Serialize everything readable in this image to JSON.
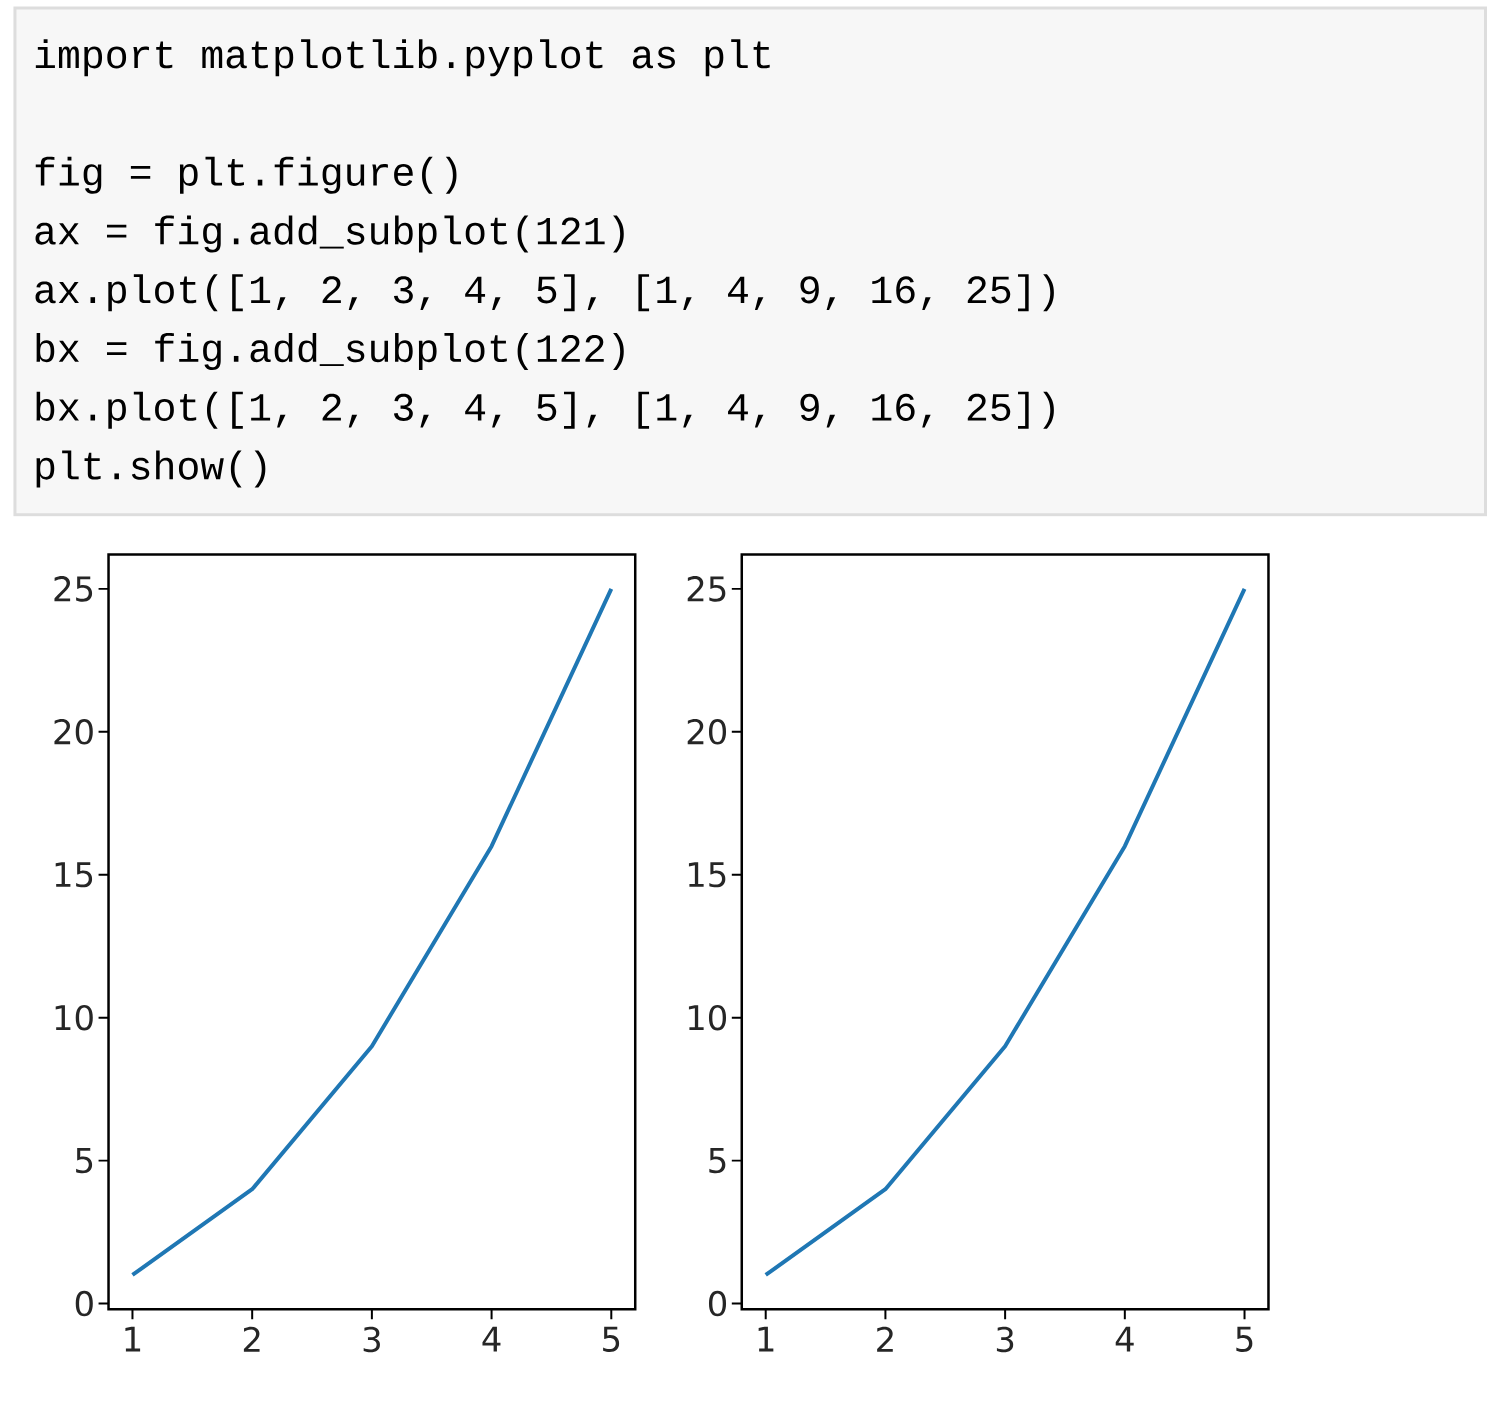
{
  "chart_data": [
    {
      "type": "other",
      "annotations": [
        "import matplotlib.pyplot as plt",
        "fig = plt.figure()",
        "ax = fig.add_subplot(121)",
        "ax.plot([1, 2, 3, 4, 5], [1, 4, 9, 16, 25])",
        "bx = fig.add_subplot(122)",
        "bx.plot([1, 2, 3, 4, 5], [1, 4, 9, 16, 25])",
        "plt.show()"
      ]
    },
    {
      "type": "line",
      "x": [
        1,
        2,
        3,
        4,
        5
      ],
      "values": [
        1,
        4,
        9,
        16,
        25
      ],
      "color": "#1f77b4",
      "xlim": [
        0.8,
        5.2
      ],
      "ylim": [
        -0.2,
        26.2
      ],
      "xticks": [
        1,
        2,
        3,
        4,
        5
      ],
      "yticks": [
        0,
        5,
        10,
        15,
        20,
        25
      ]
    },
    {
      "type": "line",
      "x": [
        1,
        2,
        3,
        4,
        5
      ],
      "values": [
        1,
        4,
        9,
        16,
        25
      ],
      "color": "#1f77b4",
      "xlim": [
        0.8,
        5.2
      ],
      "ylim": [
        -0.2,
        26.2
      ],
      "xticks": [
        1,
        2,
        3,
        4,
        5
      ],
      "yticks": [
        0,
        5,
        10,
        15,
        20,
        25
      ]
    }
  ]
}
